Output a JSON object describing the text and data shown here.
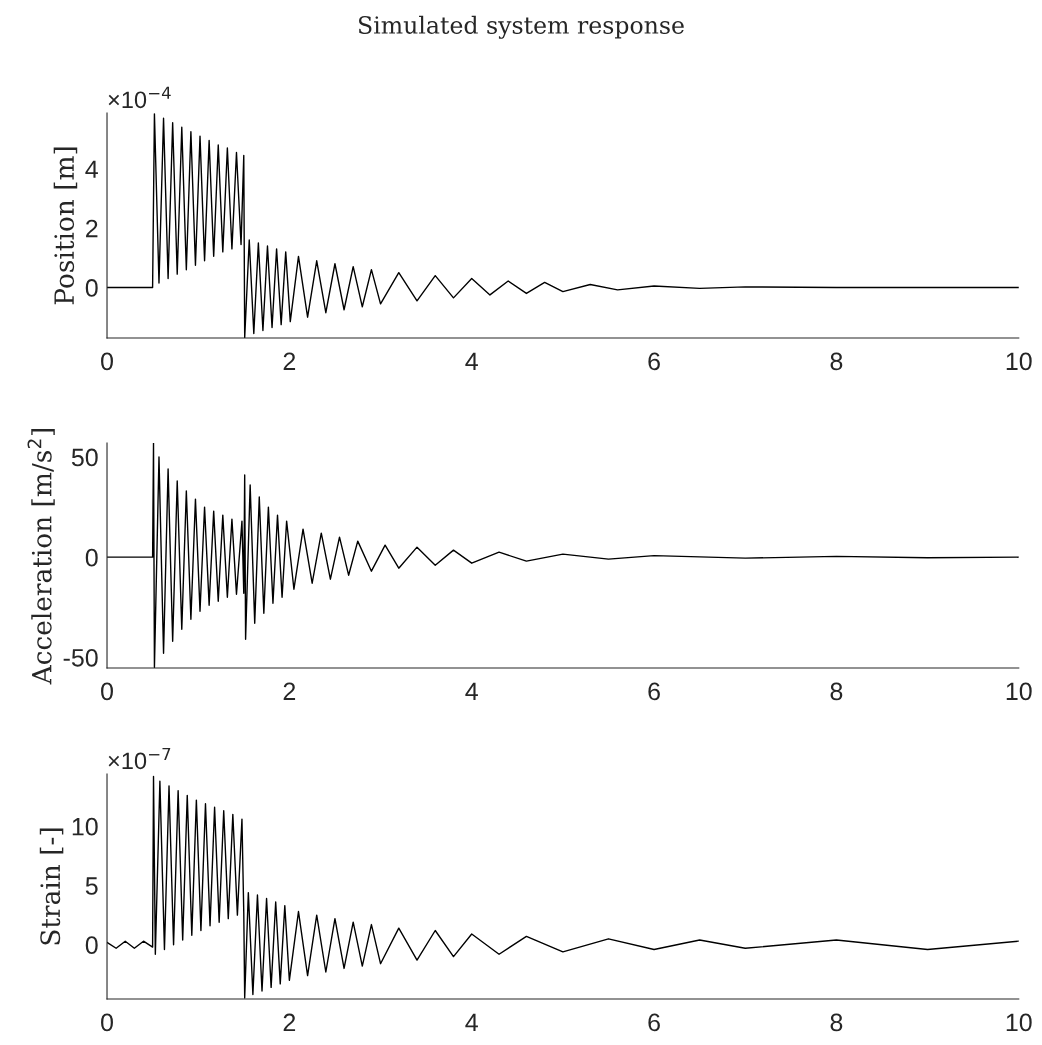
{
  "chart_data": [
    {
      "type": "line",
      "title": "Simulated system response",
      "ylabel": "Position [m]",
      "annotations": [
        "×10$^{−4}$"
      ],
      "x": [
        0,
        0.5,
        0.52,
        0.57,
        0.62,
        0.67,
        0.72,
        0.77,
        0.82,
        0.87,
        0.92,
        0.97,
        1.02,
        1.07,
        1.12,
        1.17,
        1.22,
        1.27,
        1.32,
        1.37,
        1.42,
        1.47,
        1.5,
        1.51,
        1.56,
        1.61,
        1.66,
        1.71,
        1.76,
        1.81,
        1.86,
        1.91,
        1.96,
        2.01,
        2.1,
        2.2,
        2.3,
        2.4,
        2.5,
        2.6,
        2.7,
        2.8,
        2.9,
        3.0,
        3.2,
        3.4,
        3.6,
        3.8,
        4.0,
        4.2,
        4.4,
        4.6,
        4.8,
        5.0,
        5.3,
        5.6,
        6.0,
        6.5,
        7,
        8,
        10
      ],
      "series": [
        {
          "color": "#000000",
          "values": [
            0,
            0,
            5.85,
            0.15,
            5.7,
            0.3,
            5.55,
            0.45,
            5.4,
            0.6,
            5.25,
            0.75,
            5.1,
            0.9,
            4.95,
            1.05,
            4.8,
            1.2,
            4.7,
            1.3,
            4.55,
            1.45,
            4.45,
            -1.7,
            1.6,
            -1.55,
            1.5,
            -1.45,
            1.4,
            -1.35,
            1.3,
            -1.25,
            1.2,
            -1.15,
            1.05,
            -1.0,
            0.9,
            -0.85,
            0.8,
            -0.75,
            0.7,
            -0.65,
            0.6,
            -0.55,
            0.5,
            -0.45,
            0.4,
            -0.35,
            0.3,
            -0.25,
            0.22,
            -0.2,
            0.17,
            -0.14,
            0.1,
            -0.08,
            0.05,
            -0.03,
            0.02,
            0,
            0
          ]
        }
      ],
      "xlim": [
        0,
        10
      ],
      "xticks": [
        0,
        2,
        4,
        6,
        8,
        10
      ],
      "ylim": [
        -1.7,
        5.88
      ],
      "yticks": [
        0,
        2,
        4
      ]
    },
    {
      "type": "line",
      "ylabel": "Acceleration [m/s$^{2}$]",
      "x": [
        0,
        0.5,
        0.51,
        0.52,
        0.57,
        0.62,
        0.67,
        0.72,
        0.77,
        0.82,
        0.87,
        0.92,
        0.97,
        1.02,
        1.07,
        1.12,
        1.17,
        1.22,
        1.27,
        1.32,
        1.37,
        1.42,
        1.48,
        1.5,
        1.51,
        1.52,
        1.57,
        1.62,
        1.67,
        1.72,
        1.77,
        1.82,
        1.87,
        1.92,
        1.97,
        2.05,
        2.15,
        2.25,
        2.35,
        2.45,
        2.55,
        2.65,
        2.75,
        2.9,
        3.05,
        3.2,
        3.4,
        3.6,
        3.8,
        4.0,
        4.3,
        4.6,
        5.0,
        5.5,
        6,
        7,
        8,
        9,
        10
      ],
      "series": [
        {
          "color": "#000000",
          "values": [
            0,
            0,
            57,
            -55,
            50,
            -48,
            44,
            -42,
            38,
            -36,
            33,
            -31,
            29,
            -27,
            25,
            -24,
            23,
            -22,
            21,
            -20,
            19,
            -18.5,
            18,
            -18,
            41,
            -41,
            36,
            -33,
            30,
            -28,
            25,
            -23,
            21,
            -20,
            18,
            -16,
            14,
            -13,
            12,
            -11,
            10,
            -9,
            8,
            -7,
            6,
            -5.5,
            5,
            -4,
            3.5,
            -3,
            2.5,
            -2,
            1.5,
            -1,
            0.8,
            -0.5,
            0.4,
            -0.3,
            0
          ]
        }
      ],
      "xlim": [
        0,
        10
      ],
      "xticks": [
        0,
        2,
        4,
        6,
        8,
        10
      ],
      "ylim": [
        -55.3,
        57
      ],
      "yticks": [
        -50,
        0,
        50
      ]
    },
    {
      "type": "line",
      "ylabel": "Strain [-]",
      "annotations": [
        "×10$^{−7}$"
      ],
      "x": [
        0,
        0.1,
        0.2,
        0.3,
        0.4,
        0.5,
        0.51,
        0.53,
        0.58,
        0.63,
        0.68,
        0.73,
        0.78,
        0.83,
        0.88,
        0.93,
        0.98,
        1.03,
        1.08,
        1.13,
        1.18,
        1.23,
        1.28,
        1.33,
        1.38,
        1.43,
        1.48,
        1.5,
        1.51,
        1.55,
        1.6,
        1.65,
        1.7,
        1.75,
        1.8,
        1.85,
        1.9,
        1.95,
        2.0,
        2.1,
        2.2,
        2.3,
        2.4,
        2.5,
        2.6,
        2.7,
        2.8,
        2.9,
        3.0,
        3.2,
        3.4,
        3.6,
        3.8,
        4.0,
        4.3,
        4.6,
        5.0,
        5.5,
        6,
        6.5,
        7,
        8,
        9,
        10
      ],
      "series": [
        {
          "color": "#000000",
          "values": [
            0.2,
            -0.3,
            0.3,
            -0.3,
            0.3,
            -0.2,
            14.2,
            -0.8,
            13.8,
            -0.4,
            13.4,
            0.0,
            13,
            0.4,
            12.6,
            0.8,
            12.2,
            1.2,
            11.9,
            1.6,
            11.6,
            1.9,
            11.3,
            2.2,
            11,
            2.5,
            10.6,
            2.7,
            -4.5,
            4.4,
            -4.2,
            4.2,
            -3.9,
            3.9,
            -3.6,
            3.6,
            -3.3,
            3.3,
            -3.0,
            2.8,
            -2.6,
            2.5,
            -2.3,
            2.2,
            -2.0,
            1.9,
            -1.8,
            1.7,
            -1.6,
            1.4,
            -1.3,
            1.2,
            -1.0,
            0.9,
            -0.8,
            0.7,
            -0.6,
            0.5,
            -0.4,
            0.4,
            -0.3,
            0.4,
            -0.4,
            0.3
          ]
        }
      ],
      "xlim": [
        0,
        10
      ],
      "xticks": [
        0,
        2,
        4,
        6,
        8,
        10
      ],
      "ylim": [
        -4.58,
        14.4
      ],
      "yticks": [
        0,
        5,
        10
      ]
    }
  ]
}
